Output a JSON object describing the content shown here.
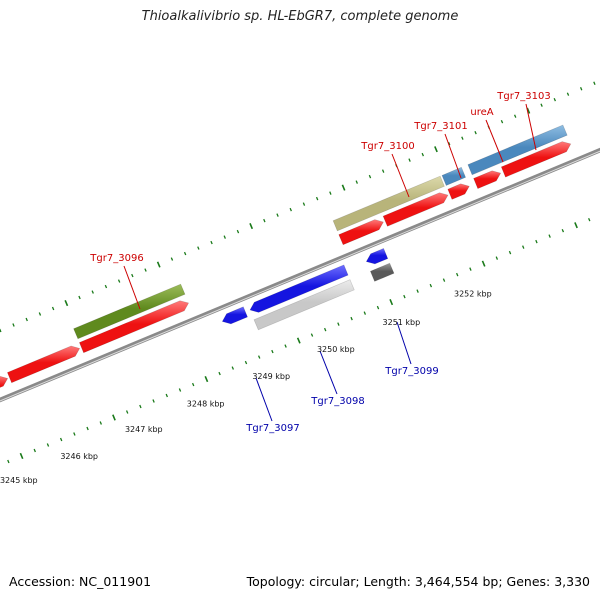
{
  "title": "Thioalkalivibrio sp. HL-EbGR7, complete genome",
  "footer": {
    "accession": "Accession: NC_011901",
    "topology": "Topology: circular; Length: 3,464,554 bp; Genes: 3,330"
  },
  "scale_labels": [
    "3245 kbp",
    "3246 kbp",
    "3247 kbp",
    "3248 kbp",
    "3249 kbp",
    "3250 kbp",
    "3251 kbp",
    "3252 kbp"
  ],
  "gene_labels": {
    "forward": [
      "Tgr7_3096",
      "Tgr7_3100",
      "Tgr7_3101",
      "ureA",
      "Tgr7_3103"
    ],
    "reverse": [
      "Tgr7_3097",
      "Tgr7_3098",
      "Tgr7_3099"
    ]
  },
  "colors": {
    "forward_label": "#cc0000",
    "reverse_label": "#0000aa",
    "cds_forward": "#ee1111",
    "cds_reverse": "#1515e0",
    "gene_olive": "#5f8a1e",
    "gene_khaki": "#b8b47a",
    "gene_steelblue": "#4a88bd",
    "gene_silver": "#c8c8c8",
    "gene_darkgray": "#5a5a5a",
    "backbone": "#8a8a8a",
    "tick": "#1a7a1a"
  }
}
